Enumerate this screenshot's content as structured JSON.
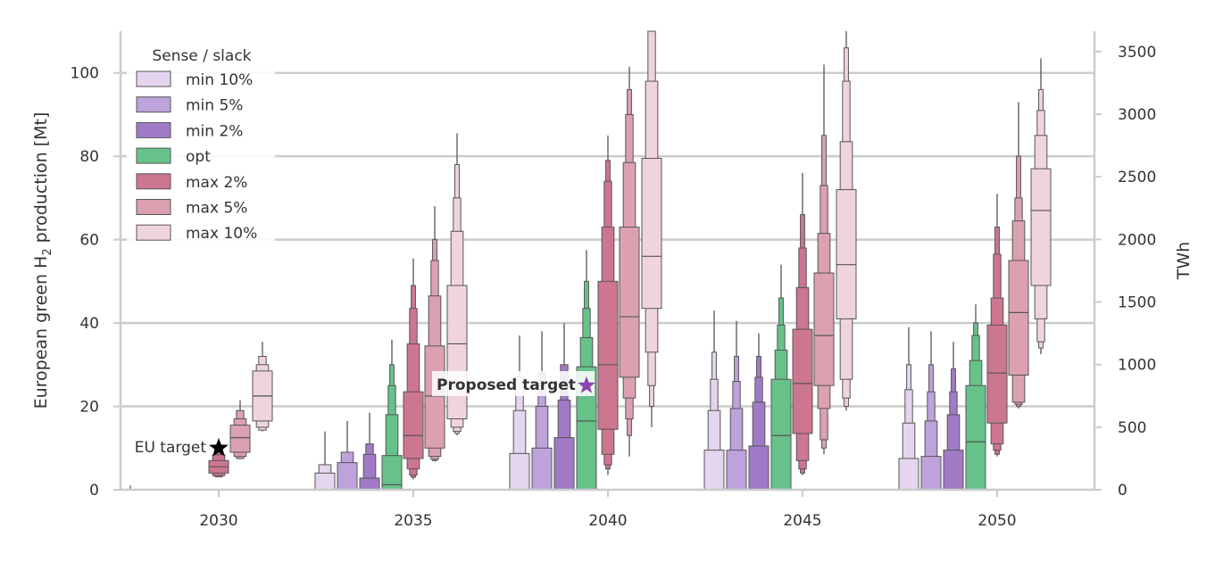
{
  "chart_data": {
    "type": "boxen",
    "ylabel_prefix": "European green H",
    "ylabel_sub": "2",
    "ylabel_suffix": " production [Mt]",
    "y2label": "TWh",
    "ylim": [
      0,
      110
    ],
    "yticks": [
      "0",
      "20",
      "40",
      "60",
      "80",
      "100"
    ],
    "y2ticks": [
      "0",
      "500",
      "1000",
      "1500",
      "2000",
      "2500",
      "3000",
      "3500"
    ],
    "y2_factor_twh_per_mt": 33.3,
    "categories": [
      "2030",
      "2035",
      "2040",
      "2045",
      "2050"
    ],
    "grid": true,
    "legend_title": "Sense / slack",
    "legend_position": "top-left",
    "series": [
      {
        "name": "min 10%",
        "color": "#e3d6ee"
      },
      {
        "name": "min 5%",
        "color": "#bda2db"
      },
      {
        "name": "min 2%",
        "color": "#a07ac7"
      },
      {
        "name": "opt",
        "color": "#67c28a"
      },
      {
        "name": "max 2%",
        "color": "#cd7690"
      },
      {
        "name": "max 5%",
        "color": "#dca1b1"
      },
      {
        "name": "max 10%",
        "color": "#efd5db"
      }
    ],
    "boxes": [
      [
        {
          "median": 0,
          "levels": [
            [
              0,
              0
            ],
            [
              0,
              0
            ]
          ],
          "tail": [
            0,
            1
          ]
        },
        {
          "median": 0,
          "levels": [
            [
              0,
              0
            ]
          ],
          "tail": [
            0,
            0
          ]
        },
        {
          "median": 0,
          "levels": [
            [
              0,
              0
            ]
          ],
          "tail": [
            0,
            0
          ]
        },
        {
          "median": 0,
          "levels": [
            [
              0,
              0
            ]
          ],
          "tail": [
            0,
            0
          ]
        },
        {
          "median": 5.5,
          "levels": [
            [
              4,
              7
            ],
            [
              3.4,
              8.4
            ],
            [
              3.1,
              10
            ]
          ],
          "tail": [
            3,
            12
          ]
        },
        {
          "median": 12.5,
          "levels": [
            [
              9,
              15.5
            ],
            [
              8,
              17
            ],
            [
              7.5,
              19
            ]
          ],
          "tail": [
            7.3,
            21.5
          ]
        },
        {
          "median": 22.5,
          "levels": [
            [
              16.5,
              28.5
            ],
            [
              15,
              30
            ],
            [
              14.3,
              32
            ]
          ],
          "tail": [
            14,
            35.5
          ]
        }
      ],
      [
        {
          "median": 0,
          "levels": [
            [
              0,
              4
            ],
            [
              0,
              6
            ]
          ],
          "tail": [
            0,
            14
          ]
        },
        {
          "median": 0,
          "levels": [
            [
              0,
              6.5
            ],
            [
              0,
              9
            ]
          ],
          "tail": [
            0,
            16.5
          ]
        },
        {
          "median": 0,
          "levels": [
            [
              0,
              2.8
            ],
            [
              0,
              8.5
            ],
            [
              0,
              11
            ]
          ],
          "tail": [
            0,
            18.5
          ]
        },
        {
          "median": 1.2,
          "levels": [
            [
              0,
              8.2
            ],
            [
              0,
              18
            ],
            [
              0,
              25
            ],
            [
              0,
              30
            ]
          ],
          "tail": [
            0,
            36
          ]
        },
        {
          "median": 13,
          "levels": [
            [
              7.5,
              23.5
            ],
            [
              5,
              35
            ],
            [
              3.5,
              43.5
            ],
            [
              3,
              49
            ]
          ],
          "tail": [
            2.5,
            55.5
          ]
        },
        {
          "median": 22.5,
          "levels": [
            [
              10,
              34.5
            ],
            [
              8,
              46.5
            ],
            [
              7.3,
              55
            ],
            [
              7,
              60
            ]
          ],
          "tail": [
            6.8,
            68
          ]
        },
        {
          "median": 35,
          "levels": [
            [
              17,
              49
            ],
            [
              15,
              62
            ],
            [
              14,
              70
            ],
            [
              13.5,
              78
            ]
          ],
          "tail": [
            13,
            85.5
          ]
        }
      ],
      [
        {
          "median": 0,
          "levels": [
            [
              0,
              8.7
            ],
            [
              0,
              19
            ],
            [
              0,
              27
            ]
          ],
          "tail": [
            0,
            37
          ]
        },
        {
          "median": 0,
          "levels": [
            [
              0,
              10
            ],
            [
              0,
              20
            ],
            [
              0,
              28
            ]
          ],
          "tail": [
            0,
            38
          ]
        },
        {
          "median": 0,
          "levels": [
            [
              0,
              12.5
            ],
            [
              0,
              21.5
            ],
            [
              0,
              30
            ]
          ],
          "tail": [
            0,
            40
          ]
        },
        {
          "median": 16.5,
          "levels": [
            [
              0,
              29.5
            ],
            [
              0,
              36.5
            ],
            [
              0,
              43.5
            ],
            [
              0,
              50
            ]
          ],
          "tail": [
            0,
            57.5
          ]
        },
        {
          "median": 30,
          "levels": [
            [
              14.5,
              50
            ],
            [
              8.5,
              63
            ],
            [
              6,
              74
            ],
            [
              5,
              79
            ]
          ],
          "tail": [
            3.5,
            85
          ]
        },
        {
          "median": 41.5,
          "levels": [
            [
              27,
              63
            ],
            [
              22,
              78.5
            ],
            [
              17,
              90
            ],
            [
              13,
              96
            ]
          ],
          "tail": [
            8,
            101.5
          ]
        },
        {
          "median": 56,
          "levels": [
            [
              43.5,
              79.5
            ],
            [
              33,
              98
            ],
            [
              25,
              110
            ],
            [
              20,
              110
            ]
          ],
          "tail": [
            15,
            110
          ]
        }
      ],
      [
        {
          "median": 0,
          "levels": [
            [
              0,
              9.5
            ],
            [
              0,
              19
            ],
            [
              0,
              26.5
            ],
            [
              0,
              33
            ]
          ],
          "tail": [
            0,
            43
          ]
        },
        {
          "median": 0,
          "levels": [
            [
              0,
              9.5
            ],
            [
              0,
              19.5
            ],
            [
              0,
              26
            ],
            [
              0,
              32
            ]
          ],
          "tail": [
            0,
            40.5
          ]
        },
        {
          "median": 0,
          "levels": [
            [
              0,
              10.5
            ],
            [
              0,
              21
            ],
            [
              0,
              27
            ],
            [
              0,
              32
            ]
          ],
          "tail": [
            0,
            37.5
          ]
        },
        {
          "median": 13,
          "levels": [
            [
              0,
              26.5
            ],
            [
              0,
              33.5
            ],
            [
              0,
              39.5
            ],
            [
              0,
              46
            ]
          ],
          "tail": [
            0,
            54
          ]
        },
        {
          "median": 25.5,
          "levels": [
            [
              13.5,
              38.5
            ],
            [
              7,
              48.5
            ],
            [
              5,
              58
            ],
            [
              4,
              66
            ]
          ],
          "tail": [
            3.5,
            76
          ]
        },
        {
          "median": 37,
          "levels": [
            [
              25,
              52
            ],
            [
              19.5,
              61.5
            ],
            [
              12,
              73
            ],
            [
              10,
              85
            ]
          ],
          "tail": [
            8.5,
            102
          ]
        },
        {
          "median": 54,
          "levels": [
            [
              41,
              72
            ],
            [
              26.5,
              83.5
            ],
            [
              22,
              98
            ],
            [
              20,
              106
            ]
          ],
          "tail": [
            19,
            110
          ]
        }
      ],
      [
        {
          "median": 0,
          "levels": [
            [
              0,
              7.5
            ],
            [
              0,
              16
            ],
            [
              0,
              24
            ],
            [
              0,
              30
            ]
          ],
          "tail": [
            0,
            39
          ]
        },
        {
          "median": 0,
          "levels": [
            [
              0,
              8
            ],
            [
              0,
              16.5
            ],
            [
              0,
              23.5
            ],
            [
              0,
              30
            ]
          ],
          "tail": [
            0,
            38
          ]
        },
        {
          "median": 0,
          "levels": [
            [
              0,
              9.5
            ],
            [
              0,
              18
            ],
            [
              0,
              23.5
            ],
            [
              0,
              29
            ]
          ],
          "tail": [
            0,
            35.5
          ]
        },
        {
          "median": 11.5,
          "levels": [
            [
              0,
              25
            ],
            [
              0,
              31
            ],
            [
              0,
              37
            ],
            [
              0,
              40
            ]
          ],
          "tail": [
            0,
            44.5
          ]
        },
        {
          "median": 28,
          "levels": [
            [
              16,
              39.5
            ],
            [
              11,
              46
            ],
            [
              9.5,
              56.5
            ],
            [
              8.5,
              63
            ]
          ],
          "tail": [
            8,
            71
          ]
        },
        {
          "median": 42.5,
          "levels": [
            [
              27.5,
              55
            ],
            [
              21,
              64.5
            ],
            [
              20.5,
              70
            ],
            [
              20,
              80
            ]
          ],
          "tail": [
            19.5,
            93
          ]
        },
        {
          "median": 67,
          "levels": [
            [
              49,
              77
            ],
            [
              41,
              85
            ],
            [
              35.5,
              91
            ],
            [
              34,
              96
            ]
          ],
          "tail": [
            32.5,
            103.5
          ]
        }
      ]
    ],
    "annotations": [
      {
        "text": "EU target",
        "year": "2030",
        "value": 10,
        "marker": "black-star",
        "bold": false
      },
      {
        "text": "Proposed target",
        "year": "2040",
        "value": 25,
        "marker": "purple-star",
        "bold": true
      }
    ]
  }
}
